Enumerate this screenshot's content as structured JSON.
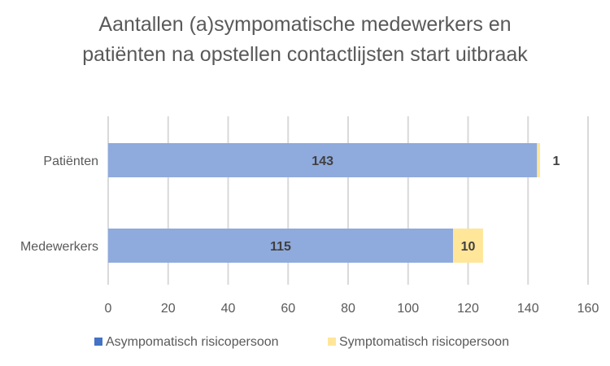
{
  "chart_data": {
    "type": "bar",
    "orientation": "horizontal",
    "stacked": true,
    "title": "Aantallen (a)sympomatische medewerkers en patiënten na opstellen contactlijsten start uitbraak",
    "categories": [
      "Patiënten",
      "Medewerkers"
    ],
    "series": [
      {
        "name": "Asympomatisch risicopersoon",
        "values": [
          143,
          115
        ],
        "color": "#8faadc"
      },
      {
        "name": "Symptomatisch risicopersoon",
        "values": [
          1,
          10
        ],
        "color": "#ffe699"
      }
    ],
    "data_labels": [
      [
        "143",
        "115"
      ],
      [
        "1",
        "10"
      ]
    ],
    "legend_swatch_colors": [
      "#4472c4",
      "#ffe699"
    ],
    "xlim": [
      0,
      160
    ],
    "x_ticks": [
      "0",
      "20",
      "40",
      "60",
      "80",
      "100",
      "120",
      "140",
      "160"
    ],
    "grid": true,
    "legend": "bottom"
  }
}
